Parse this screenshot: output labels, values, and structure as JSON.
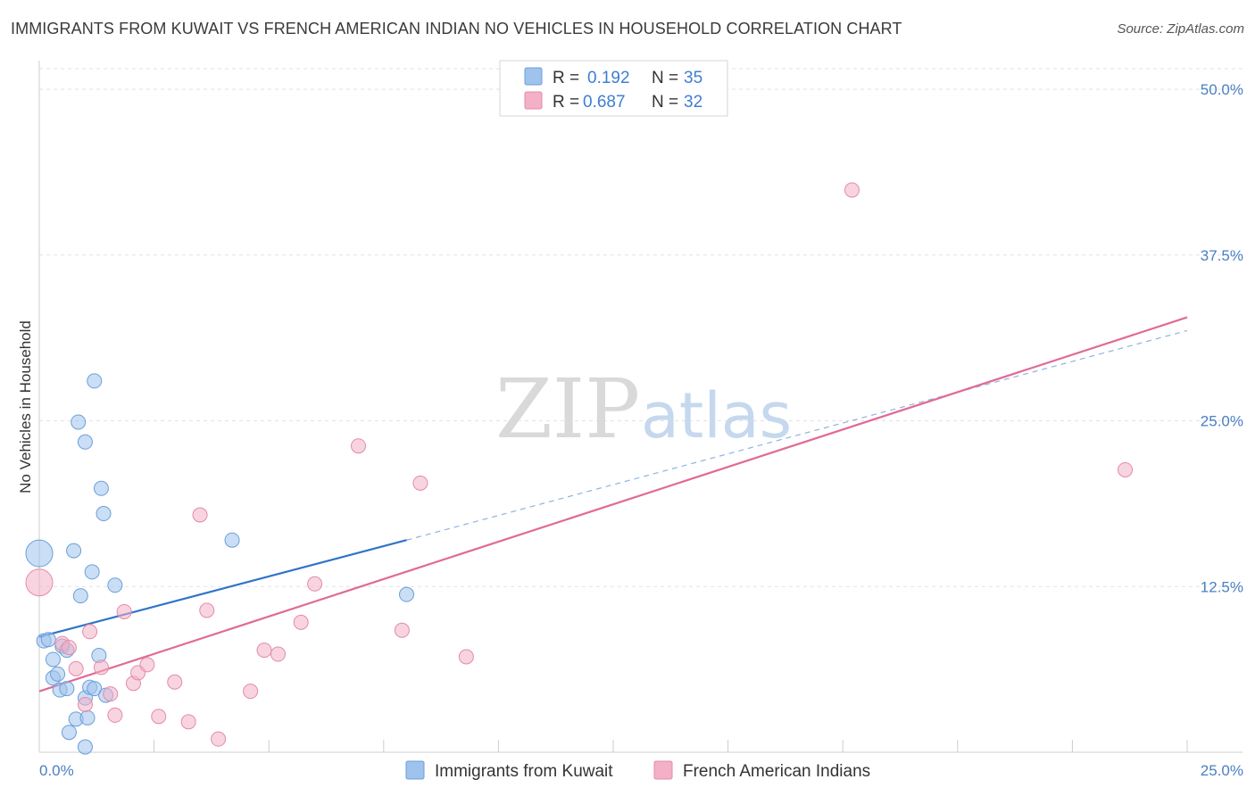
{
  "title": "IMMIGRANTS FROM KUWAIT VS FRENCH AMERICAN INDIAN NO VEHICLES IN HOUSEHOLD CORRELATION CHART",
  "source": "Source: ZipAtlas.com",
  "watermark": {
    "zip": "ZIP",
    "atlas": "atlas"
  },
  "chart_data": {
    "type": "scatter",
    "ylabel": "No Vehicles in Household",
    "xlabel": "",
    "xlim": [
      0,
      25
    ],
    "ylim": [
      0,
      50
    ],
    "x_tick_labels": [
      "0.0%",
      "25.0%"
    ],
    "y_ticks": [
      12.5,
      25.0,
      37.5,
      50.0
    ],
    "y_tick_labels": [
      "12.5%",
      "25.0%",
      "37.5%",
      "50.0%"
    ],
    "legend_top": {
      "rows": [
        {
          "r_label": "R = ",
          "r_value": "0.192",
          "n_label": "N = ",
          "n_value": "35",
          "color": "#9ec3ec"
        },
        {
          "r_label": "R = ",
          "r_value": "0.687",
          "n_label": "N = ",
          "n_value": "32",
          "color": "#f3b0c6"
        }
      ]
    },
    "series": [
      {
        "name": "Immigrants from Kuwait",
        "color": "#9ec3ec",
        "stroke": "#6b9fd8",
        "trend": {
          "x0": 0,
          "y0": 8.7,
          "x1": 8.0,
          "y1": 16.0,
          "color": "#2f74c9"
        },
        "trend_dashed": {
          "x0": 8.0,
          "y0": 16.0,
          "x1": 25.0,
          "y1": 31.8,
          "color": "#8fb3e0"
        },
        "points": [
          {
            "x": 0.0,
            "y": 15.0,
            "big": true
          },
          {
            "x": 0.1,
            "y": 8.4
          },
          {
            "x": 0.2,
            "y": 8.5
          },
          {
            "x": 0.3,
            "y": 7.0
          },
          {
            "x": 0.3,
            "y": 5.6
          },
          {
            "x": 0.4,
            "y": 5.9
          },
          {
            "x": 0.45,
            "y": 4.7
          },
          {
            "x": 0.5,
            "y": 8.0
          },
          {
            "x": 0.6,
            "y": 7.7
          },
          {
            "x": 0.6,
            "y": 4.8
          },
          {
            "x": 0.65,
            "y": 1.5
          },
          {
            "x": 0.75,
            "y": 15.2
          },
          {
            "x": 0.8,
            "y": 2.5
          },
          {
            "x": 0.85,
            "y": 24.9
          },
          {
            "x": 0.9,
            "y": 11.8
          },
          {
            "x": 1.0,
            "y": 0.4
          },
          {
            "x": 1.0,
            "y": 23.4
          },
          {
            "x": 1.0,
            "y": 4.1
          },
          {
            "x": 1.05,
            "y": 2.6
          },
          {
            "x": 1.1,
            "y": 4.9
          },
          {
            "x": 1.15,
            "y": 13.6
          },
          {
            "x": 1.2,
            "y": 28.0
          },
          {
            "x": 1.2,
            "y": 4.8
          },
          {
            "x": 1.3,
            "y": 7.3
          },
          {
            "x": 1.35,
            "y": 19.9
          },
          {
            "x": 1.4,
            "y": 18.0
          },
          {
            "x": 1.45,
            "y": 4.3
          },
          {
            "x": 1.65,
            "y": 12.6
          },
          {
            "x": 4.2,
            "y": 16.0
          },
          {
            "x": 8.0,
            "y": 11.9
          }
        ]
      },
      {
        "name": "French American Indians",
        "color": "#f3b0c6",
        "stroke": "#e48aa8",
        "trend": {
          "x0": 0,
          "y0": 4.6,
          "x1": 25.0,
          "y1": 32.8,
          "color": "#e06a96"
        },
        "points": [
          {
            "x": 0.0,
            "y": 12.8,
            "big": true
          },
          {
            "x": 0.5,
            "y": 8.2
          },
          {
            "x": 0.65,
            "y": 7.9
          },
          {
            "x": 0.8,
            "y": 6.3
          },
          {
            "x": 1.0,
            "y": 3.6
          },
          {
            "x": 1.1,
            "y": 9.1
          },
          {
            "x": 1.35,
            "y": 6.4
          },
          {
            "x": 1.55,
            "y": 4.4
          },
          {
            "x": 1.65,
            "y": 2.8
          },
          {
            "x": 1.85,
            "y": 10.6
          },
          {
            "x": 2.05,
            "y": 5.2
          },
          {
            "x": 2.15,
            "y": 6.0
          },
          {
            "x": 2.35,
            "y": 6.6
          },
          {
            "x": 2.6,
            "y": 2.7
          },
          {
            "x": 2.95,
            "y": 5.3
          },
          {
            "x": 3.25,
            "y": 2.3
          },
          {
            "x": 3.5,
            "y": 17.9
          },
          {
            "x": 3.65,
            "y": 10.7
          },
          {
            "x": 3.9,
            "y": 1.0
          },
          {
            "x": 4.6,
            "y": 4.6
          },
          {
            "x": 4.9,
            "y": 7.7
          },
          {
            "x": 5.2,
            "y": 7.4
          },
          {
            "x": 5.7,
            "y": 9.8
          },
          {
            "x": 6.0,
            "y": 12.7
          },
          {
            "x": 6.95,
            "y": 23.1
          },
          {
            "x": 7.9,
            "y": 9.2
          },
          {
            "x": 8.3,
            "y": 20.3
          },
          {
            "x": 9.3,
            "y": 7.2
          },
          {
            "x": 17.7,
            "y": 42.4
          },
          {
            "x": 23.65,
            "y": 21.3
          }
        ]
      }
    ]
  }
}
